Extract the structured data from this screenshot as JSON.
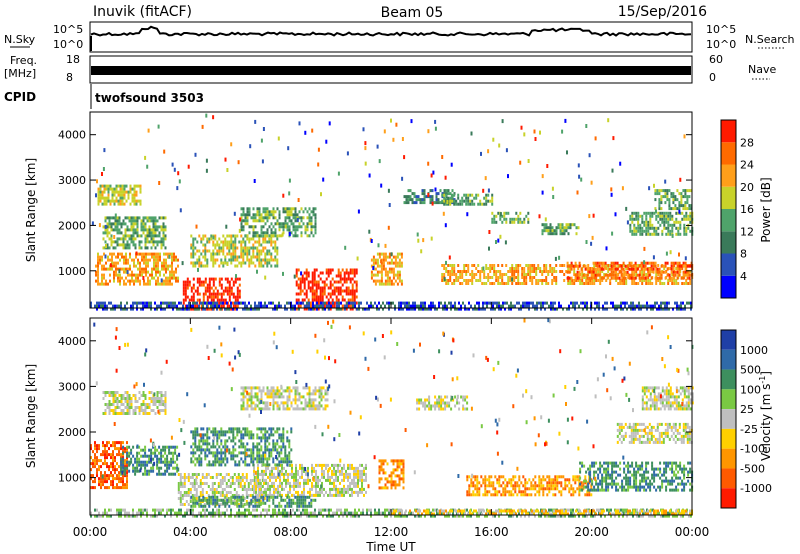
{
  "header": {
    "station": "Inuvik (fitACF)",
    "beam": "Beam 05",
    "date": "15/Sep/2016"
  },
  "nsky_panel": {
    "left_label": "N.Sky",
    "right_label": "N.Search",
    "left_ticks": [
      "10^5",
      "10^0"
    ],
    "right_ticks": [
      "10^5",
      "10^0"
    ]
  },
  "freq_panel": {
    "left_label_1": "Freq.",
    "left_label_2": "[MHz]",
    "right_label": "Nave",
    "left_ticks": [
      "18",
      "8"
    ],
    "right_ticks": [
      "60",
      "0"
    ]
  },
  "cpid_panel": {
    "label": "CPID",
    "text": "twofsound 3503"
  },
  "chart_data": [
    {
      "type": "heatmap",
      "name": "power",
      "ylabel": "Slant Range [km]",
      "ylim": [
        180,
        4500
      ],
      "yticks": [
        "1000",
        "2000",
        "3000",
        "4000"
      ],
      "xlim": [
        0,
        24
      ],
      "colorbar_label": "Power [dB]",
      "colorbar_ticks": [
        "4",
        "8",
        "12",
        "16",
        "20",
        "24",
        "28"
      ],
      "colorbar_colors": [
        "#0000ff",
        "#2a52b8",
        "#3a7a5a",
        "#4fa36a",
        "#c8d22a",
        "#ff9f1a",
        "#ff6a00",
        "#ff1a00"
      ],
      "regions": [
        {
          "t0": 3.7,
          "t1": 6.0,
          "r0": 180,
          "r1": 850,
          "level": 7
        },
        {
          "t0": 8.2,
          "t1": 10.6,
          "r0": 180,
          "r1": 1050,
          "level": 7
        },
        {
          "t0": 0.2,
          "t1": 3.5,
          "r0": 700,
          "r1": 1400,
          "level": 5
        },
        {
          "t0": 0.5,
          "t1": 3.0,
          "r0": 1500,
          "r1": 2200,
          "level": 3
        },
        {
          "t0": 0.3,
          "t1": 2.0,
          "r0": 2500,
          "r1": 2900,
          "level": 4
        },
        {
          "t0": 4.0,
          "t1": 7.5,
          "r0": 1100,
          "r1": 1800,
          "level": 4
        },
        {
          "t0": 6.0,
          "t1": 9.0,
          "r0": 1800,
          "r1": 2400,
          "level": 3
        },
        {
          "t0": 11.2,
          "t1": 12.4,
          "r0": 700,
          "r1": 1400,
          "level": 5
        },
        {
          "t0": 12.5,
          "t1": 14.5,
          "r0": 2500,
          "r1": 2800,
          "level": 2
        },
        {
          "t0": 14.0,
          "t1": 16.0,
          "r0": 2500,
          "r1": 2700,
          "level": 3
        },
        {
          "t0": 16.0,
          "t1": 17.5,
          "r0": 2050,
          "r1": 2300,
          "level": 3
        },
        {
          "t0": 18.0,
          "t1": 19.5,
          "r0": 1800,
          "r1": 2050,
          "level": 3
        },
        {
          "t0": 14.0,
          "t1": 24.0,
          "r0": 700,
          "r1": 1150,
          "level": 5
        },
        {
          "t0": 19.0,
          "t1": 24.0,
          "r0": 850,
          "r1": 1200,
          "level": 6
        },
        {
          "t0": 21.5,
          "t1": 24.0,
          "r0": 1800,
          "r1": 2300,
          "level": 3
        },
        {
          "t0": 22.5,
          "t1": 24.0,
          "r0": 2400,
          "r1": 2800,
          "level": 3
        },
        {
          "t0": 0.0,
          "t1": 24.0,
          "r0": 180,
          "r1": 320,
          "level": 1
        }
      ]
    },
    {
      "type": "heatmap",
      "name": "velocity",
      "ylabel": "Slant Range [km]",
      "ylim": [
        180,
        4500
      ],
      "yticks": [
        "1000",
        "2000",
        "3000",
        "4000"
      ],
      "xlim": [
        0,
        24
      ],
      "xticks": [
        "00:00",
        "04:00",
        "08:00",
        "12:00",
        "16:00",
        "20:00",
        "00:00"
      ],
      "xlabel": "Time UT",
      "colorbar_label": "Velocity [m s^-1]",
      "colorbar_ticks": [
        "1000",
        "500",
        "100",
        "25",
        "-25",
        "-100",
        "-500",
        "-1000"
      ],
      "colorbar_colors": [
        "#1f3fa6",
        "#2f6aa8",
        "#3d8f5e",
        "#7ac943",
        "#bfbfbf",
        "#ffd000",
        "#ff9600",
        "#ff5a00",
        "#ff1a00"
      ],
      "regions": [
        {
          "t0": 0.0,
          "t1": 1.5,
          "r0": 800,
          "r1": 1800,
          "level": 7
        },
        {
          "t0": 1.2,
          "t1": 3.5,
          "r0": 1100,
          "r1": 1700,
          "level": 2
        },
        {
          "t0": 3.5,
          "t1": 7.0,
          "r0": 400,
          "r1": 1100,
          "level": 4
        },
        {
          "t0": 6.5,
          "t1": 11.0,
          "r0": 600,
          "r1": 1300,
          "level": 4
        },
        {
          "t0": 4.0,
          "t1": 9.0,
          "r0": 350,
          "r1": 600,
          "level": 2
        },
        {
          "t0": 4.0,
          "t1": 8.0,
          "r0": 1300,
          "r1": 2100,
          "level": 2
        },
        {
          "t0": 0.5,
          "t1": 3.0,
          "r0": 2400,
          "r1": 2900,
          "level": 4
        },
        {
          "t0": 6.0,
          "t1": 9.5,
          "r0": 2500,
          "r1": 3000,
          "level": 4
        },
        {
          "t0": 11.5,
          "t1": 12.5,
          "r0": 800,
          "r1": 1400,
          "level": 6
        },
        {
          "t0": 13.0,
          "t1": 15.0,
          "r0": 2500,
          "r1": 2800,
          "level": 4
        },
        {
          "t0": 15.0,
          "t1": 20.0,
          "r0": 600,
          "r1": 1050,
          "level": 6
        },
        {
          "t0": 19.5,
          "t1": 24.0,
          "r0": 700,
          "r1": 1350,
          "level": 2
        },
        {
          "t0": 21.0,
          "t1": 24.0,
          "r0": 1800,
          "r1": 2200,
          "level": 4
        },
        {
          "t0": 22.0,
          "t1": 24.0,
          "r0": 2500,
          "r1": 3000,
          "level": 4
        },
        {
          "t0": 0.0,
          "t1": 24.0,
          "r0": 180,
          "r1": 320,
          "level": 3
        },
        {
          "t0": 12.0,
          "t1": 24.0,
          "r0": 180,
          "r1": 300,
          "level": 5
        }
      ]
    }
  ]
}
